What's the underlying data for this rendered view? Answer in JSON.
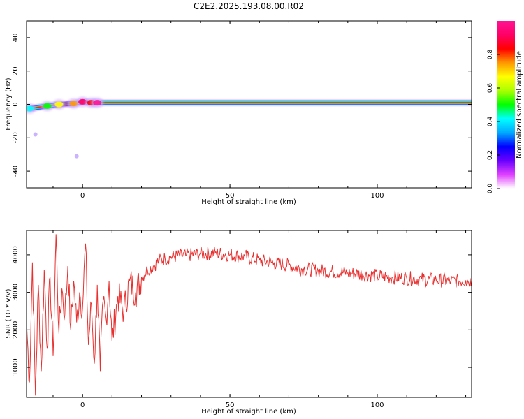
{
  "title": "C2E2.2025.193.08.00.R02",
  "chart_data": [
    {
      "type": "heatmap",
      "xlabel": "Height of straight line (km)",
      "ylabel": "Frequency (Hz)",
      "xlim": [
        -19,
        132
      ],
      "ylim": [
        -50,
        50
      ],
      "xticks": [
        0,
        50,
        100
      ],
      "yticks": [
        -40,
        -20,
        0,
        20,
        40
      ],
      "colorbar": {
        "label": "Normalized spectral amplitude",
        "range": [
          0,
          1
        ],
        "ticks": [
          "0.0",
          "0.2",
          "0.4",
          "0.6",
          "0.8"
        ],
        "colors": [
          "#ffffff",
          "#e040ff",
          "#6a00ff",
          "#0000ff",
          "#00aaff",
          "#00ffff",
          "#00ff00",
          "#aaff00",
          "#ffff00",
          "#ff9900",
          "#ff0000",
          "#ff0066",
          "#ff1493"
        ]
      },
      "ridge": {
        "frequency_hz": 1,
        "description_values": [
          {
            "x": -18,
            "y": -2.5,
            "amp": 0.45
          },
          {
            "x": -12,
            "y": -1.0,
            "amp": 0.5
          },
          {
            "x": -8,
            "y": 0.0,
            "amp": 0.7
          },
          {
            "x": -3,
            "y": 0.5,
            "amp": 0.75
          },
          {
            "x": 0,
            "y": 1.5,
            "amp": 0.9
          },
          {
            "x": 3,
            "y": 1.0,
            "amp": 0.85
          },
          {
            "x": 5,
            "y": 1.0,
            "amp": 1.0
          },
          {
            "x": 132,
            "y": 1.0,
            "amp": 1.0
          }
        ]
      },
      "outliers": [
        {
          "x": -16,
          "y": -18
        },
        {
          "x": -2,
          "y": -31
        }
      ],
      "grid": false
    },
    {
      "type": "line",
      "xlabel": "Height of straight line (km)",
      "ylabel": "SNR (10 * v/v)",
      "xlim": [
        -19,
        132
      ],
      "ylim": [
        200,
        4650
      ],
      "xticks": [
        0,
        50,
        100
      ],
      "yticks": [
        1000,
        2000,
        3000,
        4000
      ],
      "color": "#e8302f",
      "x": [
        -19,
        -18,
        -17,
        -16,
        -15,
        -14,
        -13,
        -12,
        -11,
        -10,
        -9,
        -8,
        -7,
        -6,
        -5,
        -4,
        -3,
        -2,
        -1,
        0,
        1,
        2,
        3,
        4,
        5,
        6,
        7,
        8,
        9,
        10,
        12,
        14,
        16,
        18,
        20,
        22,
        24,
        26,
        28,
        30,
        35,
        40,
        45,
        50,
        55,
        60,
        65,
        70,
        75,
        80,
        85,
        90,
        95,
        100,
        105,
        110,
        115,
        120,
        125,
        130,
        132
      ],
      "y": [
        2200,
        600,
        3800,
        250,
        3200,
        900,
        3600,
        1500,
        3400,
        1300,
        4550,
        1900,
        3100,
        2400,
        3700,
        2000,
        3300,
        2200,
        3000,
        2600,
        4300,
        1600,
        2700,
        1100,
        3200,
        900,
        2800,
        2300,
        3300,
        1700,
        2900,
        2500,
        3300,
        3000,
        3400,
        3600,
        3700,
        3850,
        3900,
        3950,
        3980,
        4030,
        4050,
        4000,
        3960,
        3850,
        3780,
        3720,
        3620,
        3580,
        3550,
        3520,
        3480,
        3440,
        3400,
        3380,
        3350,
        3330,
        3300,
        3320,
        3300
      ],
      "grid": false
    }
  ]
}
